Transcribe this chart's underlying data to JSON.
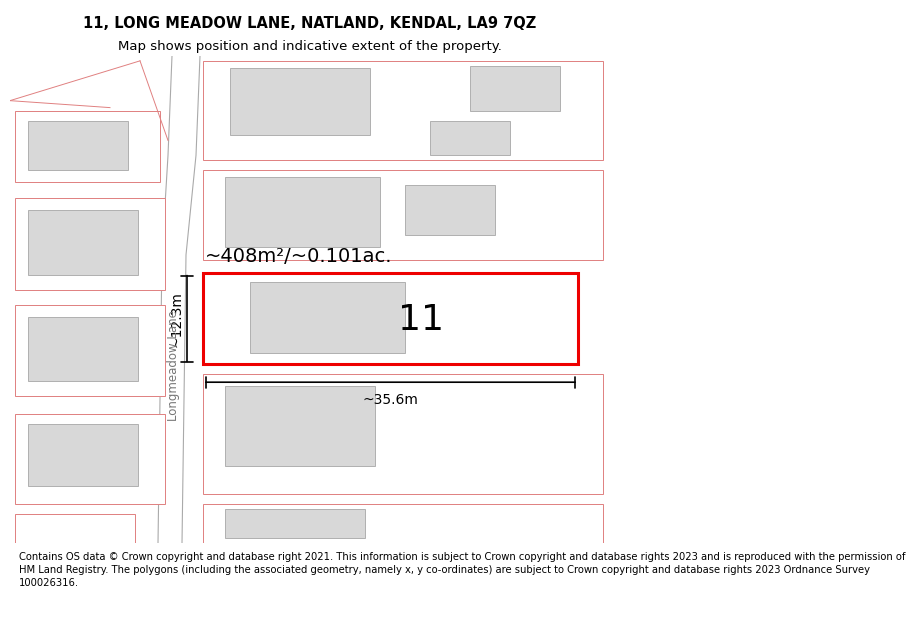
{
  "title": "11, LONG MEADOW LANE, NATLAND, KENDAL, LA9 7QZ",
  "subtitle": "Map shows position and indicative extent of the property.",
  "footer_lines": [
    "Contains OS data © Crown copyright and database right 2021. This information is subject to Crown copyright and database rights 2023 and is reproduced with the permission of",
    "HM Land Registry. The polygons (including the associated geometry, namely x, y co-ordinates) are subject to Crown copyright and database rights 2023 Ordnance Survey",
    "100026316."
  ],
  "bg_color": "#f7f7f7",
  "road_fill": "#ffffff",
  "road_border": "#aaaaaa",
  "plot_edge": "#e08080",
  "plot_fill": "#ffffff",
  "bld_fill": "#d8d8d8",
  "bld_edge": "#b0b0b0",
  "highlight_edge": "#ee0000",
  "highlight_fill": "#ffffff",
  "area_label": "~408m²/~0.101ac.",
  "width_label": "~35.6m",
  "height_label": "~12.3m",
  "number_label": "11",
  "road_label": "Longmeadow Lane",
  "title_fs": 10.5,
  "subtitle_fs": 9.5,
  "footer_fs": 7.2,
  "area_fs": 14,
  "dim_fs": 10,
  "num_fs": 26
}
